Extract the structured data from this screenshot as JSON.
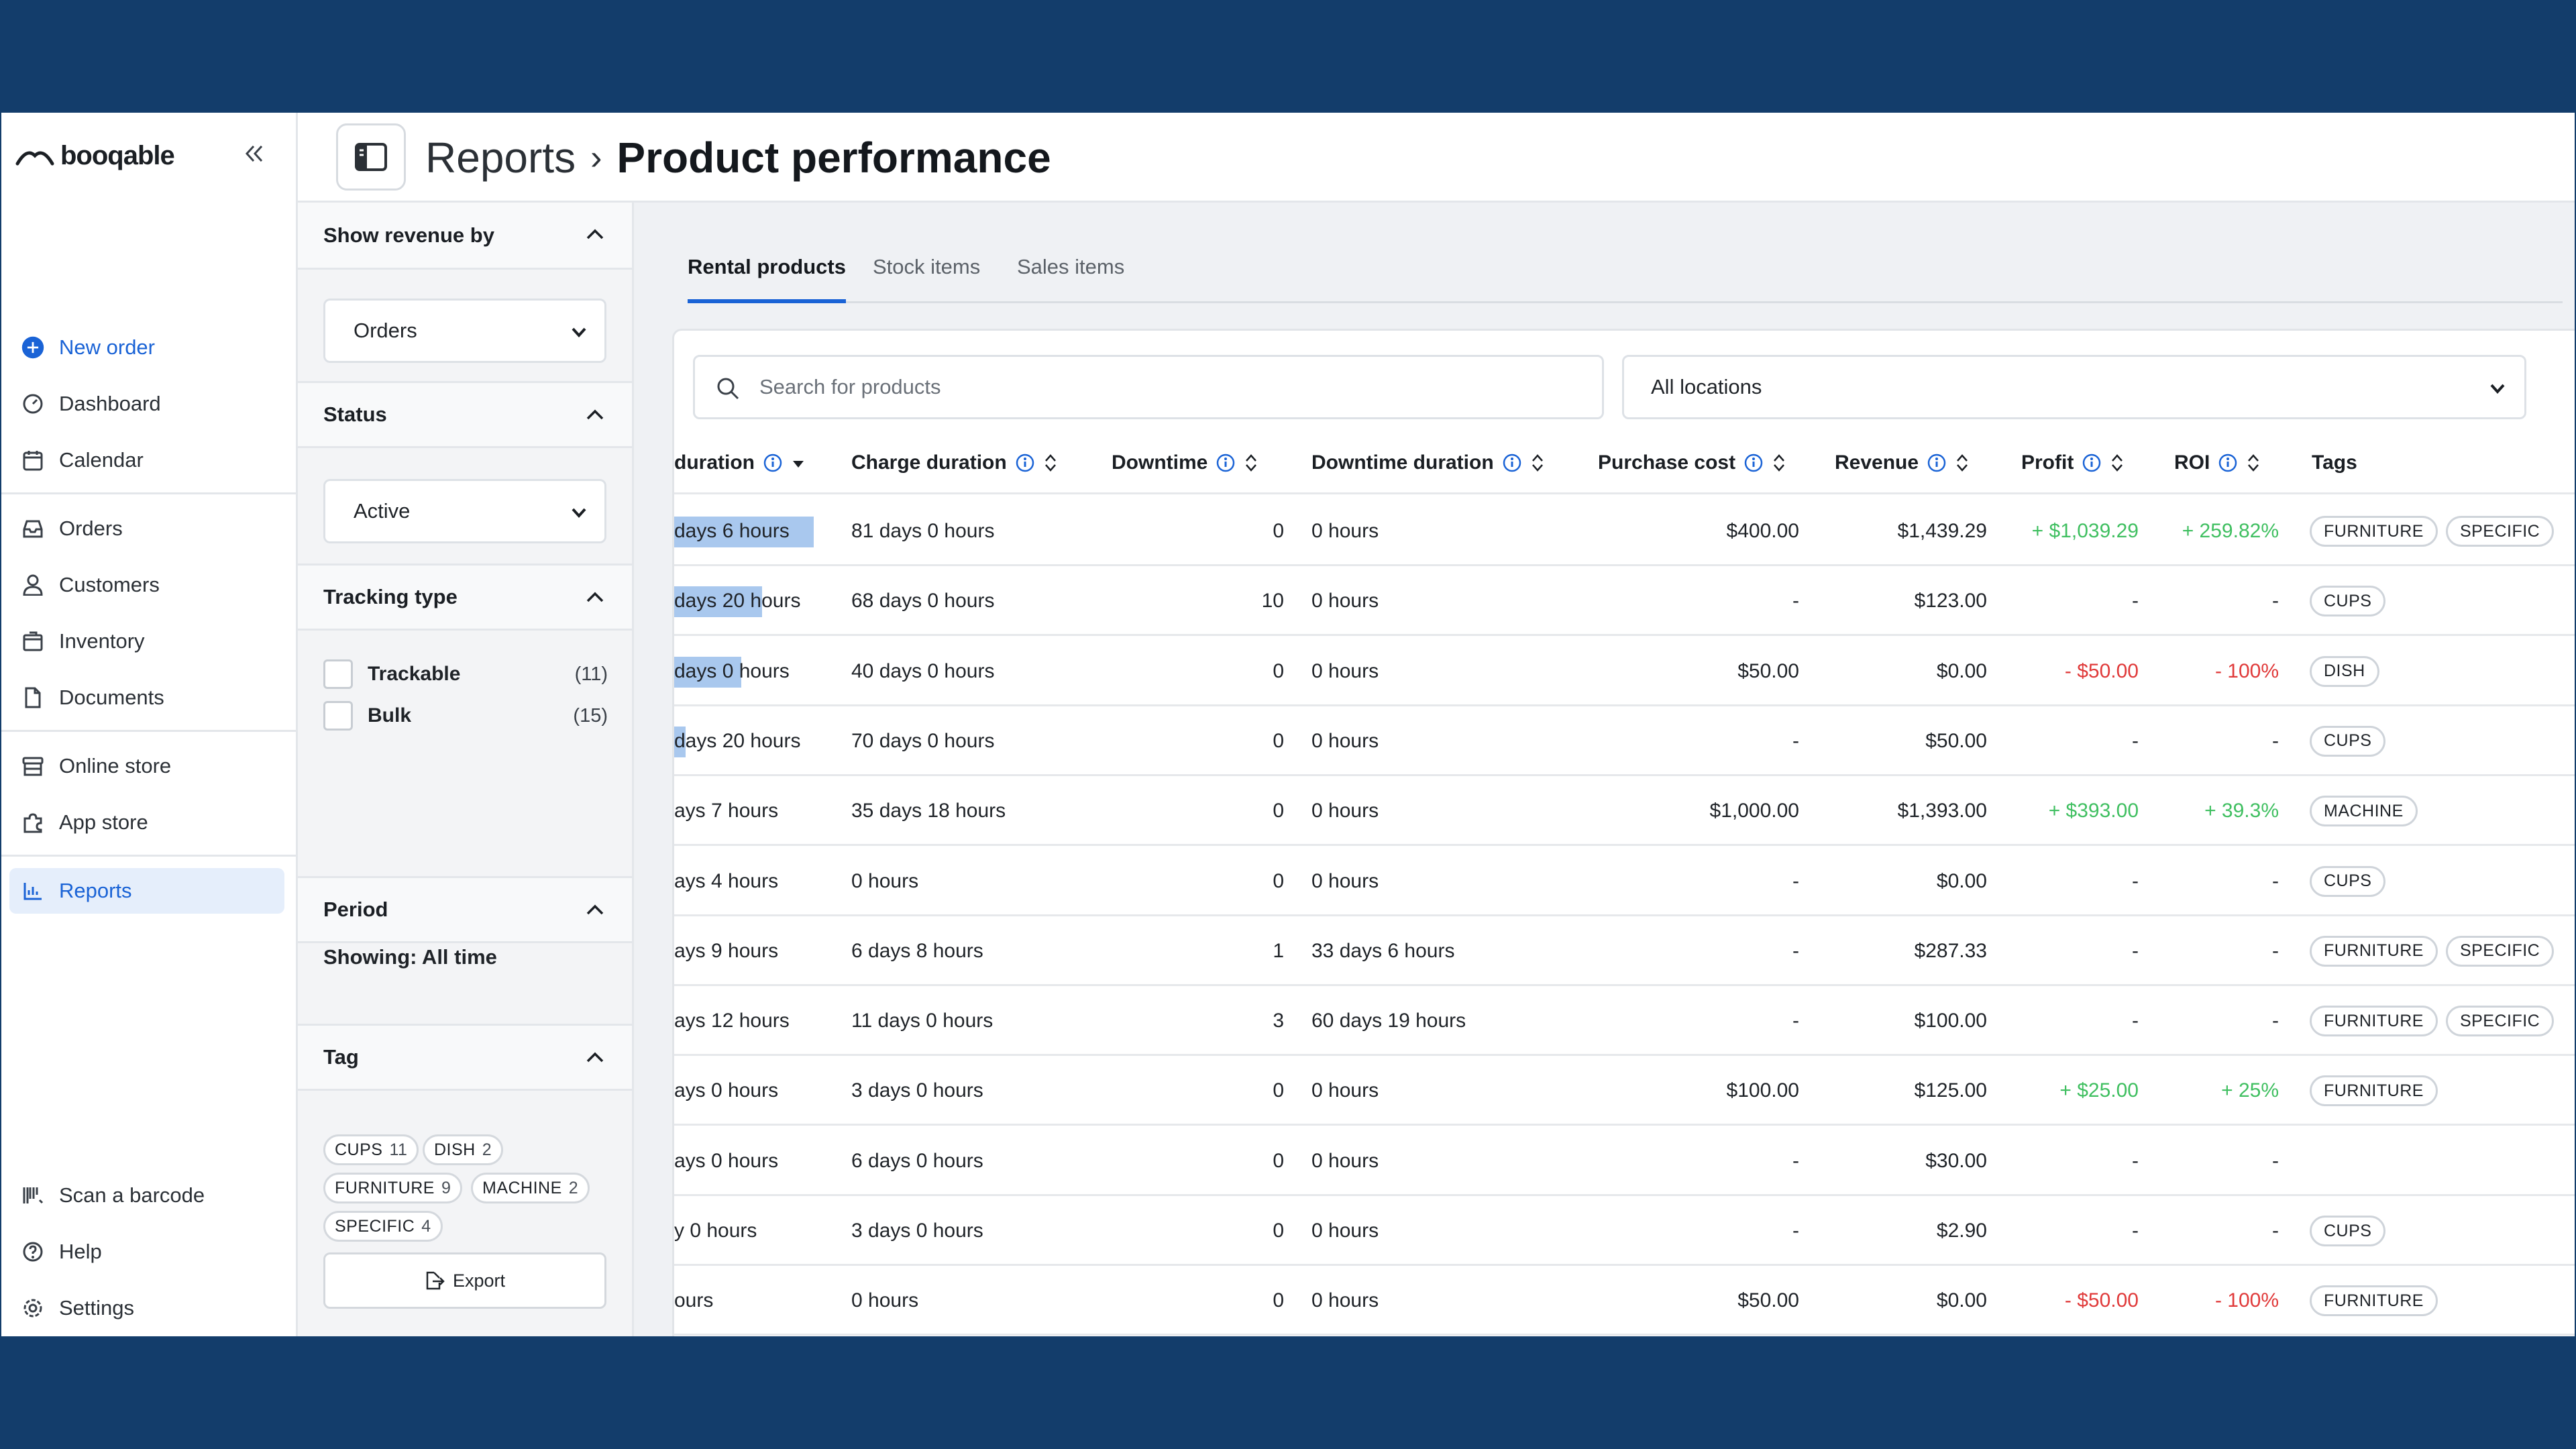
{
  "brand": {
    "logo_text": "booqable"
  },
  "nav": {
    "new_order": "New order",
    "dashboard": "Dashboard",
    "calendar": "Calendar",
    "orders": "Orders",
    "customers": "Customers",
    "inventory": "Inventory",
    "documents": "Documents",
    "online_store": "Online store",
    "app_store": "App store",
    "reports": "Reports",
    "scan": "Scan a barcode",
    "help": "Help",
    "settings": "Settings"
  },
  "header": {
    "breadcrumb_parent": "Reports",
    "separator": "›",
    "title": "Product performance"
  },
  "filters": {
    "revenue_by": {
      "heading": "Show revenue by",
      "value": "Orders"
    },
    "status": {
      "heading": "Status",
      "value": "Active"
    },
    "tracking": {
      "heading": "Tracking type",
      "options": [
        {
          "label": "Trackable",
          "count": "(11)"
        },
        {
          "label": "Bulk",
          "count": "(15)"
        }
      ]
    },
    "period": {
      "heading": "Period",
      "text": "Showing: All time"
    },
    "tag": {
      "heading": "Tag",
      "pills": [
        {
          "name": "CUPS",
          "count": "11"
        },
        {
          "name": "DISH",
          "count": "2"
        },
        {
          "name": "FURNITURE",
          "count": "9"
        },
        {
          "name": "MACHINE",
          "count": "2"
        },
        {
          "name": "SPECIFIC",
          "count": "4"
        }
      ]
    },
    "export": "Export"
  },
  "tabs": [
    "Rental products",
    "Stock items",
    "Sales items"
  ],
  "search": {
    "placeholder": "Search for products"
  },
  "location": {
    "value": "All locations"
  },
  "columns": {
    "duration": "duration",
    "charge_duration": "Charge duration",
    "downtime": "Downtime",
    "downtime_duration": "Downtime duration",
    "purchase_cost": "Purchase cost",
    "revenue": "Revenue",
    "profit": "Profit",
    "roi": "ROI",
    "tags": "Tags"
  },
  "rows": [
    {
      "duration": "days 6 hours",
      "bar": 1.0,
      "charge": "81 days 0 hours",
      "downtime": "0",
      "dt_duration": "0 hours",
      "cost": "$400.00",
      "revenue": "$1,439.29",
      "profit": "+ $1,039.29",
      "roi": "+ 259.82%",
      "trend": "pos",
      "tags": [
        "FURNITURE",
        "SPECIFIC"
      ]
    },
    {
      "duration": "days 20 hours",
      "bar": 0.63,
      "charge": "68 days 0 hours",
      "downtime": "10",
      "dt_duration": "0 hours",
      "cost": "-",
      "revenue": "$123.00",
      "profit": "-",
      "roi": "-",
      "trend": "",
      "tags": [
        "CUPS"
      ]
    },
    {
      "duration": "days 0 hours",
      "bar": 0.48,
      "charge": "40 days 0 hours",
      "downtime": "0",
      "dt_duration": "0 hours",
      "cost": "$50.00",
      "revenue": "$0.00",
      "profit": "- $50.00",
      "roi": "- 100%",
      "trend": "neg",
      "tags": [
        "DISH"
      ]
    },
    {
      "duration": "days 20 hours",
      "bar": 0.08,
      "charge": "70 days 0 hours",
      "downtime": "0",
      "dt_duration": "0 hours",
      "cost": "-",
      "revenue": "$50.00",
      "profit": "-",
      "roi": "-",
      "trend": "",
      "tags": [
        "CUPS"
      ]
    },
    {
      "duration": "ays 7 hours",
      "bar": 0,
      "charge": "35 days 18 hours",
      "downtime": "0",
      "dt_duration": "0 hours",
      "cost": "$1,000.00",
      "revenue": "$1,393.00",
      "profit": "+ $393.00",
      "roi": "+ 39.3%",
      "trend": "pos",
      "tags": [
        "MACHINE"
      ]
    },
    {
      "duration": "ays 4 hours",
      "bar": 0,
      "charge": "0 hours",
      "downtime": "0",
      "dt_duration": "0 hours",
      "cost": "-",
      "revenue": "$0.00",
      "profit": "-",
      "roi": "-",
      "trend": "",
      "tags": [
        "CUPS"
      ]
    },
    {
      "duration": "ays 9 hours",
      "bar": 0,
      "charge": "6 days 8 hours",
      "downtime": "1",
      "dt_duration": "33 days 6 hours",
      "cost": "-",
      "revenue": "$287.33",
      "profit": "-",
      "roi": "-",
      "trend": "",
      "tags": [
        "FURNITURE",
        "SPECIFIC"
      ]
    },
    {
      "duration": "ays 12 hours",
      "bar": 0,
      "charge": "11 days 0 hours",
      "downtime": "3",
      "dt_duration": "60 days 19 hours",
      "cost": "-",
      "revenue": "$100.00",
      "profit": "-",
      "roi": "-",
      "trend": "",
      "tags": [
        "FURNITURE",
        "SPECIFIC"
      ]
    },
    {
      "duration": "ays 0 hours",
      "bar": 0,
      "charge": "3 days 0 hours",
      "downtime": "0",
      "dt_duration": "0 hours",
      "cost": "$100.00",
      "revenue": "$125.00",
      "profit": "+ $25.00",
      "roi": "+ 25%",
      "trend": "pos",
      "tags": [
        "FURNITURE"
      ]
    },
    {
      "duration": "ays 0 hours",
      "bar": 0,
      "charge": "6 days 0 hours",
      "downtime": "0",
      "dt_duration": "0 hours",
      "cost": "-",
      "revenue": "$30.00",
      "profit": "-",
      "roi": "-",
      "trend": "",
      "tags": []
    },
    {
      "duration": "y 0 hours",
      "bar": 0,
      "charge": "3 days 0 hours",
      "downtime": "0",
      "dt_duration": "0 hours",
      "cost": "-",
      "revenue": "$2.90",
      "profit": "-",
      "roi": "-",
      "trend": "",
      "tags": [
        "CUPS"
      ]
    },
    {
      "duration": "ours",
      "bar": 0,
      "charge": "0 hours",
      "downtime": "0",
      "dt_duration": "0 hours",
      "cost": "$50.00",
      "revenue": "$0.00",
      "profit": "- $50.00",
      "roi": "- 100%",
      "trend": "neg",
      "tags": [
        "FURNITURE"
      ]
    }
  ],
  "colors": {
    "accent": "#1a63d6",
    "frame": "#133d6b",
    "positive": "#3fbf60",
    "negative": "#e03a3a",
    "bar": "#a9c8ee"
  }
}
